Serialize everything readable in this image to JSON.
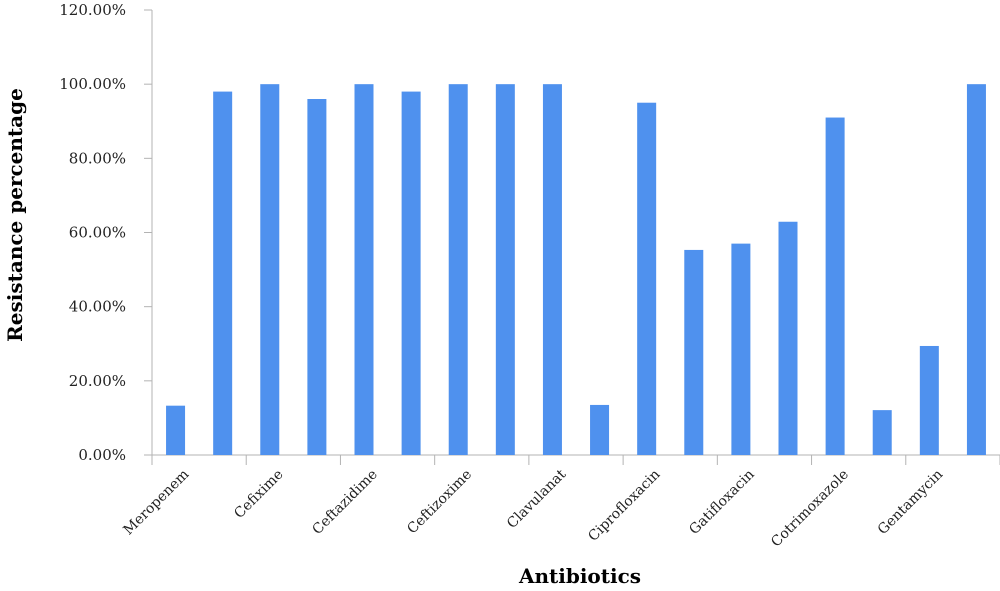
{
  "chart_data": {
    "type": "bar",
    "categories": [
      "Meropenem",
      "",
      "Cefixime",
      "",
      "Ceftazidime",
      "",
      "Ceftizoxime",
      "",
      "Clavulanat",
      "",
      "Ciprofloxacin",
      "",
      "Gatifloxacin",
      "",
      "Cotrimoxazole",
      "",
      "Gentamycin",
      ""
    ],
    "values": [
      13.3,
      98,
      100,
      96,
      100,
      98,
      100,
      100,
      100,
      13.5,
      95,
      55.3,
      57,
      62.9,
      91,
      12.1,
      29.4,
      100
    ],
    "xlabel": "Antibiotics",
    "ylabel": "Resistance percentage",
    "ylim": [
      0,
      120
    ],
    "yticks": [
      "0.00%",
      "20.00%",
      "40.00%",
      "60.00%",
      "80.00%",
      "100.00%",
      "120.00%"
    ],
    "bar_color": "#4f91ee",
    "grid": false
  }
}
